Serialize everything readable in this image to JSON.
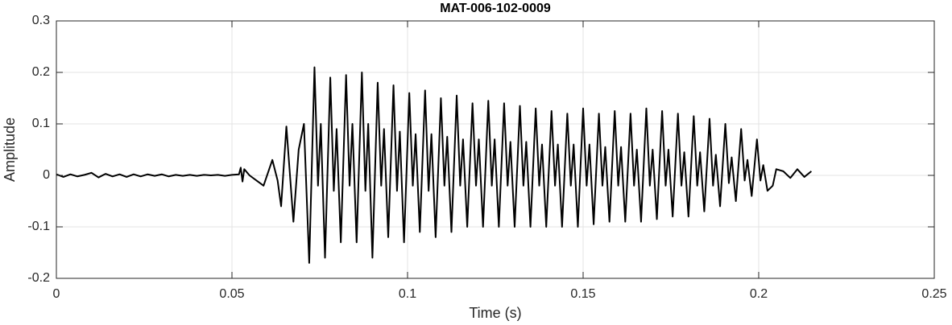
{
  "chart_data": {
    "type": "line",
    "title": "MAT-006-102-0009",
    "xlabel": "Time (s)",
    "ylabel": "Amplitude",
    "color": "#000000",
    "grid": true,
    "xlim": [
      0,
      0.25
    ],
    "ylim": [
      -0.2,
      0.3
    ],
    "xticks": [
      0,
      0.05,
      0.1,
      0.15,
      0.2,
      0.25
    ],
    "yticks": [
      -0.2,
      -0.1,
      0,
      0.1,
      0.2,
      0.3
    ],
    "x": [
      0,
      0.002,
      0.004,
      0.006,
      0.008,
      0.01,
      0.012,
      0.014,
      0.016,
      0.018,
      0.02,
      0.022,
      0.024,
      0.026,
      0.028,
      0.03,
      0.032,
      0.034,
      0.036,
      0.038,
      0.04,
      0.042,
      0.044,
      0.046,
      0.048,
      0.05,
      0.052,
      0.0525,
      0.053,
      0.0535,
      0.055,
      0.057,
      0.059,
      0.0615,
      0.063,
      0.064,
      0.0655,
      0.0675,
      0.069,
      0.0705,
      0.072,
      0.0735,
      0.0745,
      0.0753,
      0.0765,
      0.078,
      0.079,
      0.0798,
      0.081,
      0.0825,
      0.0835,
      0.0843,
      0.0855,
      0.087,
      0.088,
      0.0888,
      0.09,
      0.0915,
      0.0925,
      0.0933,
      0.0945,
      0.096,
      0.097,
      0.0978,
      0.099,
      0.1005,
      0.1015,
      0.1023,
      0.1035,
      0.105,
      0.106,
      0.1068,
      0.108,
      0.1095,
      0.1105,
      0.1113,
      0.1125,
      0.114,
      0.115,
      0.1158,
      0.117,
      0.1185,
      0.1195,
      0.1203,
      0.1215,
      0.123,
      0.124,
      0.1248,
      0.126,
      0.1275,
      0.1285,
      0.1293,
      0.1305,
      0.132,
      0.133,
      0.1338,
      0.135,
      0.1365,
      0.1375,
      0.1383,
      0.1395,
      0.141,
      0.142,
      0.1428,
      0.144,
      0.1455,
      0.1465,
      0.1473,
      0.1485,
      0.15,
      0.151,
      0.1518,
      0.153,
      0.1545,
      0.1555,
      0.1563,
      0.1575,
      0.159,
      0.16,
      0.1608,
      0.162,
      0.1635,
      0.1645,
      0.1653,
      0.1665,
      0.168,
      0.169,
      0.1698,
      0.171,
      0.1725,
      0.1735,
      0.1743,
      0.1755,
      0.177,
      0.178,
      0.1788,
      0.18,
      0.1815,
      0.1825,
      0.1833,
      0.1845,
      0.186,
      0.187,
      0.1878,
      0.189,
      0.1905,
      0.1915,
      0.1923,
      0.1935,
      0.195,
      0.196,
      0.1968,
      0.198,
      0.1995,
      0.2005,
      0.2013,
      0.2025,
      0.204,
      0.205,
      0.207,
      0.209,
      0.211,
      0.213,
      0.215
    ],
    "values": [
      0.002,
      -0.003,
      0.002,
      -0.002,
      0.001,
      0.005,
      -0.004,
      0.003,
      -0.002,
      0.002,
      -0.003,
      0.002,
      -0.002,
      0.002,
      -0.001,
      0.002,
      -0.002,
      0.001,
      -0.001,
      0.001,
      -0.001,
      0.001,
      0,
      0.001,
      -0.001,
      0.001,
      0.002,
      0.015,
      -0.012,
      0.012,
      0,
      -0.01,
      -0.02,
      0.03,
      -0.01,
      -0.06,
      0.095,
      -0.09,
      0.05,
      0.1,
      -0.17,
      0.21,
      -0.02,
      0.1,
      -0.16,
      0.19,
      -0.03,
      0.09,
      -0.13,
      0.195,
      -0.02,
      0.1,
      -0.13,
      0.2,
      -0.03,
      0.1,
      -0.16,
      0.18,
      -0.02,
      0.09,
      -0.12,
      0.175,
      -0.03,
      0.085,
      -0.13,
      0.16,
      -0.02,
      0.08,
      -0.11,
      0.165,
      -0.03,
      0.08,
      -0.12,
      0.15,
      -0.02,
      0.075,
      -0.11,
      0.155,
      -0.02,
      0.07,
      -0.1,
      0.14,
      -0.02,
      0.07,
      -0.1,
      0.145,
      -0.02,
      0.07,
      -0.1,
      0.14,
      -0.02,
      0.065,
      -0.1,
      0.135,
      -0.02,
      0.065,
      -0.1,
      0.13,
      -0.02,
      0.06,
      -0.1,
      0.125,
      -0.02,
      0.06,
      -0.1,
      0.12,
      -0.02,
      0.06,
      -0.1,
      0.13,
      -0.02,
      0.06,
      -0.095,
      0.12,
      -0.02,
      0.055,
      -0.09,
      0.125,
      -0.02,
      0.055,
      -0.09,
      0.12,
      -0.02,
      0.05,
      -0.09,
      0.13,
      -0.02,
      0.05,
      -0.085,
      0.125,
      -0.02,
      0.05,
      -0.08,
      0.12,
      -0.02,
      0.045,
      -0.08,
      0.115,
      -0.02,
      0.045,
      -0.07,
      0.11,
      -0.02,
      0.04,
      -0.06,
      0.1,
      -0.015,
      0.035,
      -0.05,
      0.09,
      -0.01,
      0.03,
      -0.04,
      0.07,
      -0.01,
      0.02,
      -0.03,
      -0.02,
      0.012,
      0.008,
      -0.005,
      0.012,
      -0.003,
      0.008
    ]
  }
}
